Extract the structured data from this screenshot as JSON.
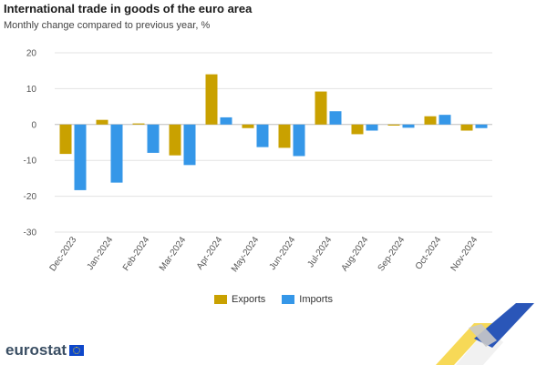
{
  "header": {
    "title": "International trade in goods of the euro area",
    "subtitle": "Monthly change compared to previous year, %"
  },
  "brand": {
    "logo_text": "eurostat"
  },
  "colors": {
    "exports": "#c9a100",
    "imports": "#3597e8",
    "grid": "#e3e3e3"
  },
  "chart_data": {
    "type": "bar",
    "categories": [
      "Dec-2023",
      "Jan-2024",
      "Feb-2024",
      "Mar-2024",
      "Apr-2024",
      "May-2024",
      "Jun-2024",
      "Jul-2024",
      "Aug-2024",
      "Sep-2024",
      "Oct-2024",
      "Nov-2024"
    ],
    "series": [
      {
        "name": "Exports",
        "values": [
          -8.2,
          1.3,
          0.3,
          -8.6,
          14.0,
          -1.0,
          -6.5,
          9.2,
          -2.7,
          -0.3,
          2.3,
          -1.7
        ]
      },
      {
        "name": "Imports",
        "values": [
          -18.3,
          -16.2,
          -7.9,
          -11.3,
          2.0,
          -6.3,
          -8.8,
          3.7,
          -1.7,
          -0.9,
          2.7,
          -1.0
        ]
      }
    ],
    "yticks": [
      20,
      10,
      0,
      -10,
      -20,
      -30
    ],
    "ylim": [
      -30,
      20
    ],
    "xlabel": "",
    "ylabel": "",
    "grid": true,
    "legend_position": "bottom-center"
  }
}
